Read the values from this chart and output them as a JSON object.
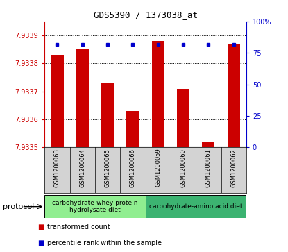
{
  "title": "GDS5390 / 1373038_at",
  "samples": [
    "GSM1200063",
    "GSM1200064",
    "GSM1200065",
    "GSM1200066",
    "GSM1200059",
    "GSM1200060",
    "GSM1200061",
    "GSM1200062"
  ],
  "red_values": [
    7.93383,
    7.93385,
    7.93373,
    7.93363,
    7.93388,
    7.93371,
    7.93352,
    7.93387
  ],
  "blue_values": [
    82,
    82,
    82,
    82,
    82,
    82,
    82,
    82
  ],
  "ymin": 7.9335,
  "ymax": 7.93395,
  "yticks": [
    7.9335,
    7.9336,
    7.9337,
    7.9338,
    7.9339
  ],
  "ytick_labels": [
    "7.9335",
    "7.9336",
    "7.9337",
    "7.9338",
    "7.9339"
  ],
  "y2min": 0,
  "y2max": 100,
  "y2ticks": [
    0,
    25,
    50,
    75,
    100
  ],
  "y2tick_labels": [
    "0",
    "25",
    "50",
    "75",
    "100%"
  ],
  "protocol_groups": [
    {
      "label": "carbohydrate-whey protein\nhydrolysate diet",
      "start": 0,
      "end": 3,
      "color": "#90ee90"
    },
    {
      "label": "carbohydrate-amino acid diet",
      "start": 4,
      "end": 7,
      "color": "#3cb371"
    }
  ],
  "bar_color": "#cc0000",
  "dot_color": "#0000cc",
  "bar_width": 0.5,
  "background_color": "#ffffff",
  "plot_bg_color": "#ffffff",
  "tick_area_bg": "#d3d3d3",
  "legend_items": [
    {
      "label": "transformed count",
      "color": "#cc0000"
    },
    {
      "label": "percentile rank within the sample",
      "color": "#0000cc"
    }
  ],
  "protocol_label": "protocol"
}
